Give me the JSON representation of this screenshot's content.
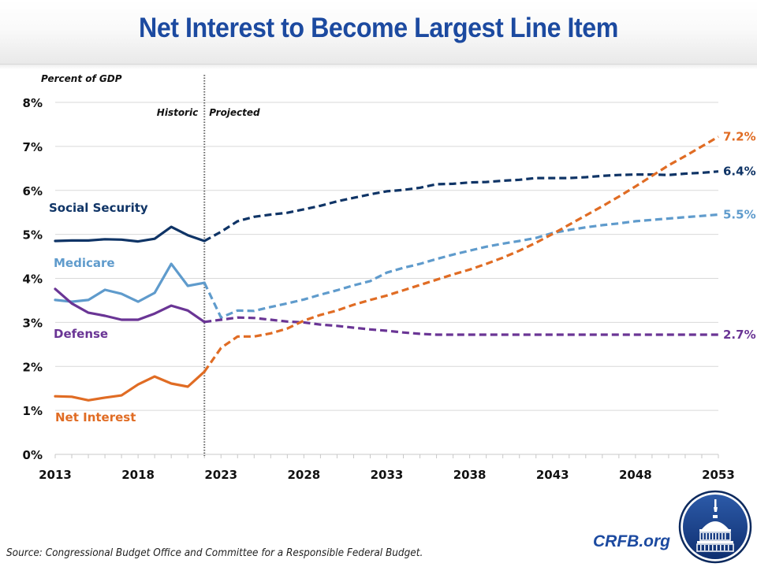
{
  "header": {
    "title": "Net Interest to Become Largest Line Item"
  },
  "footer": {
    "source": "Source: Congressional Budget Office and Committee for a Responsible Federal Budget.",
    "brand": "CRFB.org",
    "logo_icon": "capitol-dome-seal-icon"
  },
  "chart_data": {
    "type": "line",
    "title": "Net Interest to Become Largest Line Item",
    "ylabel": "Percent of GDP",
    "xlabel": "",
    "ylim": [
      0,
      8
    ],
    "xlim": [
      2013,
      2053
    ],
    "y_ticks": [
      0,
      1,
      2,
      3,
      4,
      5,
      6,
      7,
      8
    ],
    "y_tick_labels": [
      "0%",
      "1%",
      "2%",
      "3%",
      "4%",
      "5%",
      "6%",
      "7%",
      "8%"
    ],
    "x_tick_labels": [
      "2013",
      "2018",
      "2023",
      "2028",
      "2033",
      "2038",
      "2043",
      "2048",
      "2053"
    ],
    "x_tick_values": [
      2013,
      2018,
      2023,
      2028,
      2033,
      2038,
      2043,
      2048,
      2053
    ],
    "grid": true,
    "divider": {
      "year": 2022,
      "left_label": "Historic",
      "right_label": "Projected"
    },
    "x": [
      2013,
      2014,
      2015,
      2016,
      2017,
      2018,
      2019,
      2020,
      2021,
      2022,
      2023,
      2024,
      2025,
      2026,
      2027,
      2028,
      2029,
      2030,
      2031,
      2032,
      2033,
      2034,
      2035,
      2036,
      2037,
      2038,
      2039,
      2040,
      2041,
      2042,
      2043,
      2044,
      2045,
      2046,
      2047,
      2048,
      2049,
      2050,
      2051,
      2052,
      2053
    ],
    "series": [
      {
        "name": "Social Security",
        "color": "#0f3466",
        "end_label": "6.4%",
        "values": [
          4.85,
          4.86,
          4.86,
          4.89,
          4.88,
          4.84,
          4.9,
          5.17,
          4.98,
          4.85,
          5.06,
          5.3,
          5.4,
          5.45,
          5.49,
          5.57,
          5.65,
          5.75,
          5.83,
          5.91,
          5.98,
          6.01,
          6.06,
          6.14,
          6.15,
          6.18,
          6.19,
          6.22,
          6.24,
          6.28,
          6.28,
          6.28,
          6.3,
          6.33,
          6.35,
          6.36,
          6.36,
          6.35,
          6.38,
          6.4,
          6.43
        ]
      },
      {
        "name": "Medicare",
        "color": "#5f9bcc",
        "end_label": "5.5%",
        "values": [
          3.51,
          3.47,
          3.51,
          3.74,
          3.65,
          3.47,
          3.67,
          4.33,
          3.83,
          3.9,
          3.11,
          3.27,
          3.26,
          3.35,
          3.43,
          3.52,
          3.63,
          3.73,
          3.84,
          3.94,
          4.13,
          4.24,
          4.33,
          4.44,
          4.54,
          4.63,
          4.72,
          4.79,
          4.85,
          4.92,
          5.03,
          5.1,
          5.16,
          5.21,
          5.25,
          5.3,
          5.33,
          5.36,
          5.39,
          5.42,
          5.45
        ]
      },
      {
        "name": "Defense",
        "color": "#6a3595",
        "end_label": "2.7%",
        "values": [
          3.76,
          3.43,
          3.22,
          3.15,
          3.06,
          3.06,
          3.2,
          3.38,
          3.27,
          3.01,
          3.06,
          3.11,
          3.1,
          3.06,
          3.02,
          3.0,
          2.95,
          2.92,
          2.88,
          2.84,
          2.81,
          2.77,
          2.74,
          2.72,
          2.72,
          2.72,
          2.72,
          2.72,
          2.72,
          2.72,
          2.72,
          2.72,
          2.72,
          2.72,
          2.72,
          2.72,
          2.72,
          2.72,
          2.72,
          2.72,
          2.72
        ]
      },
      {
        "name": "Net Interest",
        "color": "#e06c24",
        "end_label": "7.2%",
        "values": [
          1.32,
          1.31,
          1.23,
          1.29,
          1.34,
          1.59,
          1.77,
          1.61,
          1.54,
          1.88,
          2.42,
          2.68,
          2.68,
          2.75,
          2.86,
          3.04,
          3.17,
          3.27,
          3.4,
          3.51,
          3.61,
          3.73,
          3.85,
          3.97,
          4.09,
          4.2,
          4.33,
          4.47,
          4.63,
          4.81,
          5.01,
          5.22,
          5.43,
          5.64,
          5.86,
          6.09,
          6.33,
          6.57,
          6.78,
          7.0,
          7.22
        ]
      }
    ]
  }
}
